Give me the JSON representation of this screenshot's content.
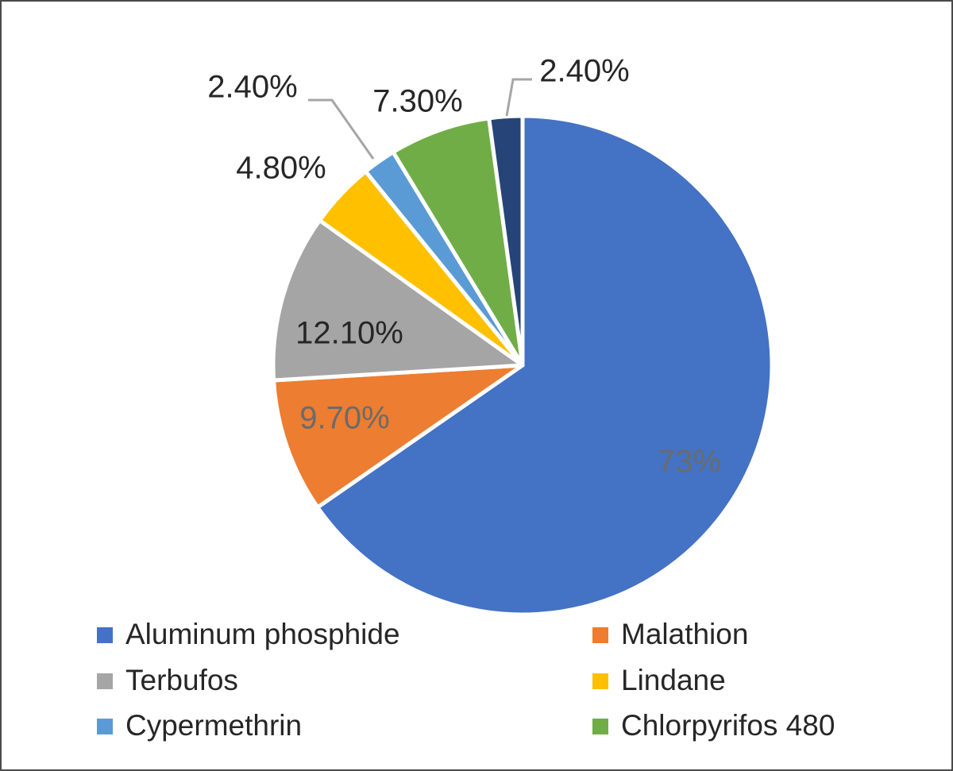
{
  "chart_data": {
    "type": "pie",
    "title": "",
    "slices": [
      {
        "name": "Aluminum phosphide",
        "value": 73,
        "label": "73%",
        "color": "#4472C4",
        "label_color": "#6b6b6b"
      },
      {
        "name": "Malathion",
        "value": 9.7,
        "label": "9.70%",
        "color": "#ED7D31",
        "label_color": "#6b6b6b"
      },
      {
        "name": "Terbufos",
        "value": 12.1,
        "label": "12.10%",
        "color": "#A5A5A5",
        "label_color": "#262626"
      },
      {
        "name": "Lindane",
        "value": 4.8,
        "label": "4.80%",
        "color": "#FFC000",
        "label_color": "#262626"
      },
      {
        "name": "Cypermethrin",
        "value": 2.4,
        "label": "2.40%",
        "color": "#5B9BD5",
        "label_color": "#262626"
      },
      {
        "name": "Chlorpyrifos 480",
        "value": 7.3,
        "label": "7.30%",
        "color": "#70AD47",
        "label_color": "#262626"
      },
      {
        "name": "",
        "value": 2.4,
        "label": "2.40%",
        "color": "#264478",
        "label_color": "#262626"
      }
    ],
    "legend_position": "bottom",
    "legend_entries": [
      "Aluminum phosphide",
      "Malathion",
      "Terbufos",
      "Lindane",
      "Cypermethrin",
      "Chlorpyrifos 480"
    ],
    "start_angle": "12 o'clock",
    "direction": "clockwise"
  }
}
